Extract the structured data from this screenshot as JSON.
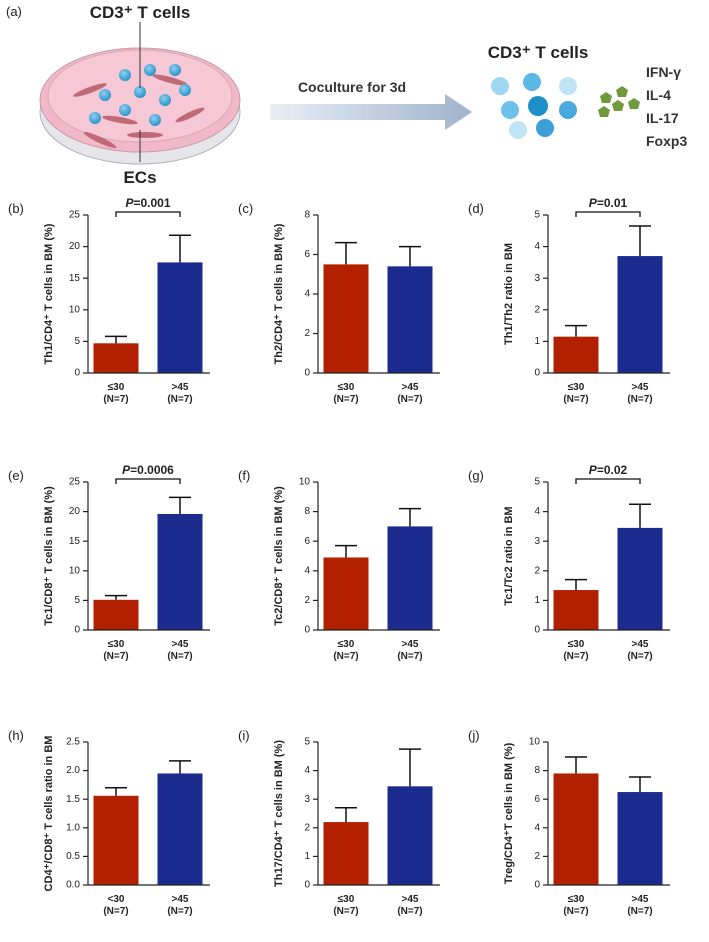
{
  "panel_a": {
    "label": "(a)",
    "dish_label": "CD3⁺ T cells",
    "ecs_label": "ECs",
    "arrow_label": "Coculture for 3d",
    "result_title": "CD3⁺ T cells",
    "markers": [
      "IFN-γ",
      "IL-4",
      "IL-17",
      "Foxp3"
    ]
  },
  "chart_data": [
    {
      "type": "bar",
      "panel": "(b)",
      "ylabel": "Th1/CD4⁺ T cells in BM (%)",
      "categories": [
        [
          "≤30",
          "(N=7)"
        ],
        [
          ">45",
          "(N=7)"
        ]
      ],
      "values": [
        4.7,
        17.5
      ],
      "errors": [
        1.1,
        4.3
      ],
      "colors": [
        "#b32000",
        "#1b2b8e"
      ],
      "ylim": [
        0,
        25
      ],
      "yticks": [
        0,
        5,
        10,
        15,
        20,
        25
      ],
      "annotation_prefix": "P",
      "annotation": "=0.001"
    },
    {
      "type": "bar",
      "panel": "(c)",
      "ylabel": "Th2/CD4⁺ T cells in BM (%)",
      "categories": [
        [
          "≤30",
          "(N=7)"
        ],
        [
          ">45",
          "(N=7)"
        ]
      ],
      "values": [
        5.5,
        5.4
      ],
      "errors": [
        1.1,
        1.0
      ],
      "colors": [
        "#b32000",
        "#1b2b8e"
      ],
      "ylim": [
        0,
        8
      ],
      "yticks": [
        0,
        2,
        4,
        6,
        8
      ]
    },
    {
      "type": "bar",
      "panel": "(d)",
      "ylabel": "Th1/Th2 ratio in BM",
      "categories": [
        [
          "≤30",
          "(N=7)"
        ],
        [
          ">45",
          "(N=7)"
        ]
      ],
      "values": [
        1.15,
        3.7
      ],
      "errors": [
        0.35,
        0.95
      ],
      "colors": [
        "#b32000",
        "#1b2b8e"
      ],
      "ylim": [
        0,
        5
      ],
      "yticks": [
        0,
        1,
        2,
        3,
        4,
        5
      ],
      "annotation_prefix": "P",
      "annotation": "=0.01"
    },
    {
      "type": "bar",
      "panel": "(e)",
      "ylabel": "Tc1/CD8⁺ T cells in BM (%)",
      "categories": [
        [
          "≤30",
          "(N=7)"
        ],
        [
          ">45",
          "(N=7)"
        ]
      ],
      "values": [
        5.1,
        19.6
      ],
      "errors": [
        0.7,
        2.8
      ],
      "colors": [
        "#b32000",
        "#1b2b8e"
      ],
      "ylim": [
        0,
        25
      ],
      "yticks": [
        0,
        5,
        10,
        15,
        20,
        25
      ],
      "annotation_prefix": "P",
      "annotation": "=0.0006"
    },
    {
      "type": "bar",
      "panel": "(f)",
      "ylabel": "Tc2/CD8⁺ T cells in BM (%)",
      "categories": [
        [
          "≤30",
          "(N=7)"
        ],
        [
          ">45",
          "(N=7)"
        ]
      ],
      "values": [
        4.9,
        7.0
      ],
      "errors": [
        0.8,
        1.2
      ],
      "colors": [
        "#b32000",
        "#1b2b8e"
      ],
      "ylim": [
        0,
        10
      ],
      "yticks": [
        0,
        2,
        4,
        6,
        8,
        10
      ]
    },
    {
      "type": "bar",
      "panel": "(g)",
      "ylabel": "Tc1/Tc2 ratio in BM",
      "categories": [
        [
          "≤30",
          "(N=7)"
        ],
        [
          ">45",
          "(N=7)"
        ]
      ],
      "values": [
        1.35,
        3.45
      ],
      "errors": [
        0.35,
        0.8
      ],
      "colors": [
        "#b32000",
        "#1b2b8e"
      ],
      "ylim": [
        0,
        5
      ],
      "yticks": [
        0,
        1,
        2,
        3,
        4,
        5
      ],
      "annotation_prefix": "P",
      "annotation": "=0.02"
    },
    {
      "type": "bar",
      "panel": "(h)",
      "ylabel": "CD4⁺/CD8⁺ T cells ratio in BM",
      "categories": [
        [
          "<30",
          "(N=7)"
        ],
        [
          ">45",
          "(N=7)"
        ]
      ],
      "values": [
        1.56,
        1.95
      ],
      "errors": [
        0.14,
        0.22
      ],
      "colors": [
        "#b32000",
        "#1b2b8e"
      ],
      "ylim": [
        0,
        2.5
      ],
      "yticks": [
        {
          "value": 0,
          "label": "0.0"
        },
        0.5,
        {
          "value": 1,
          "label": "1.0"
        },
        1.5,
        {
          "value": 2,
          "label": "2.0"
        },
        2.5
      ]
    },
    {
      "type": "bar",
      "panel": "(i)",
      "ylabel": "Th17/CD4⁺ T cells in BM (%)",
      "categories": [
        [
          "≤30",
          "(N=7)"
        ],
        [
          ">45",
          "(N=7)"
        ]
      ],
      "values": [
        2.2,
        3.45
      ],
      "errors": [
        0.5,
        1.3
      ],
      "colors": [
        "#b32000",
        "#1b2b8e"
      ],
      "ylim": [
        0,
        5
      ],
      "yticks": [
        0,
        1,
        2,
        3,
        4,
        5
      ]
    },
    {
      "type": "bar",
      "panel": "(j)",
      "ylabel": "Treg/CD4⁺T cells in BM (%)",
      "categories": [
        [
          "≤30",
          "(N=7)"
        ],
        [
          ">45",
          "(N=7)"
        ]
      ],
      "values": [
        7.8,
        6.5
      ],
      "errors": [
        1.15,
        1.05
      ],
      "colors": [
        "#b32000",
        "#1b2b8e"
      ],
      "ylim": [
        0,
        10
      ],
      "yticks": [
        0,
        2,
        4,
        6,
        8,
        10
      ]
    }
  ]
}
